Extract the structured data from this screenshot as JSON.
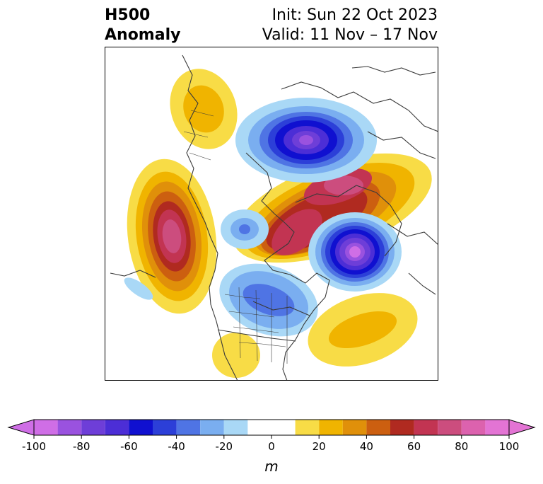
{
  "title": {
    "left_line1": "H500",
    "left_line2": "Anomaly",
    "init": "Init: Sun 22 Oct 2023",
    "valid": "Valid: 11 Nov – 17 Nov"
  },
  "colorbar": {
    "unit": "m",
    "ticks": [
      "-100",
      "-80",
      "-60",
      "-40",
      "-20",
      "0",
      "20",
      "40",
      "60",
      "80",
      "100"
    ],
    "levels": [
      -100,
      -90,
      -80,
      -70,
      -60,
      -50,
      -40,
      -30,
      -20,
      -10,
      10,
      20,
      30,
      40,
      50,
      60,
      70,
      80,
      90,
      100
    ],
    "colors": [
      "#cf6ee6",
      "#9a52df",
      "#6e3ed8",
      "#4c2ed6",
      "#1010d0",
      "#2c3fd8",
      "#4f74e4",
      "#7aaef0",
      "#a9d8f6",
      "#ffffff",
      "#f8dc46",
      "#f0b400",
      "#e0900a",
      "#cc5f10",
      "#b02a20",
      "#c23452",
      "#cc4d7e",
      "#dc62ae",
      "#e374d4"
    ],
    "under_color": "#cf6ee6",
    "over_color": "#e374d4"
  },
  "map": {
    "anomaly_centers": [
      {
        "region": "North Pacific / Alaska ridge",
        "sign": "positive",
        "peak_m": 85
      },
      {
        "region": "Arctic Canada / Greenland ridge",
        "sign": "positive",
        "peak_m": 70
      },
      {
        "region": "Siberian Arctic trough",
        "sign": "negative",
        "peak_m": -80
      },
      {
        "region": "North Atlantic / Scandinavia trough",
        "sign": "negative",
        "peak_m": -90
      },
      {
        "region": "Central North America trough",
        "sign": "negative",
        "peak_m": -50
      },
      {
        "region": "Central Atlantic ridge",
        "sign": "positive",
        "peak_m": 35
      },
      {
        "region": "Western Canada ridge",
        "sign": "positive",
        "peak_m": 25
      },
      {
        "region": "Gulf of Mexico ridge",
        "sign": "positive",
        "peak_m": 15
      }
    ]
  }
}
